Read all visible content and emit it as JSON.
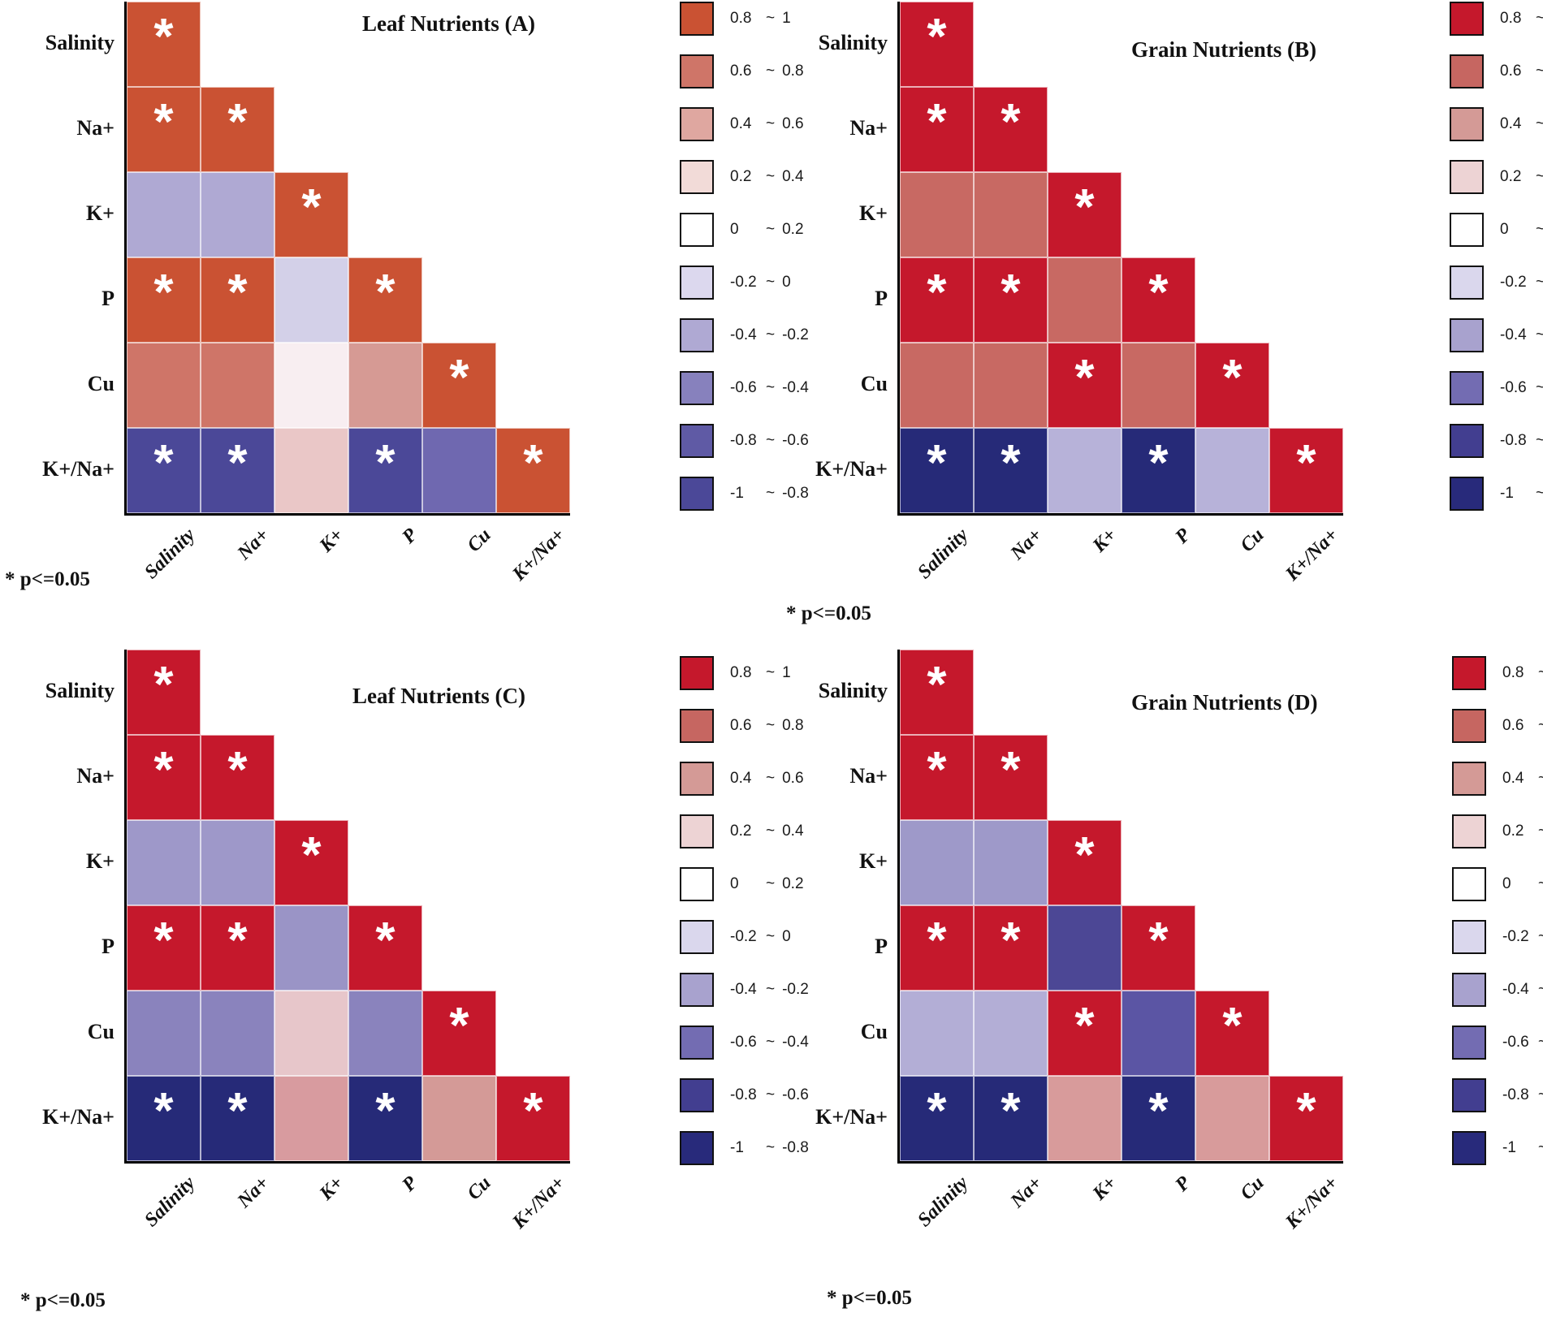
{
  "figure": {
    "significance_note": "* p<=0.05",
    "variables": [
      "Salinity",
      "Na+",
      "K+",
      "P",
      "Cu",
      "K+/Na+"
    ],
    "legend_bins": [
      {
        "from": "0.8",
        "to": "1"
      },
      {
        "from": "0.6",
        "to": "0.8"
      },
      {
        "from": "0.4",
        "to": "0.6"
      },
      {
        "from": "0.2",
        "to": "0.4"
      },
      {
        "from": "0",
        "to": "0.2"
      },
      {
        "from": "-0.2",
        "to": "0"
      },
      {
        "from": "-0.4",
        "to": "-0.2"
      },
      {
        "from": "-0.6",
        "to": "-0.4"
      },
      {
        "from": "-0.8",
        "to": "-0.6"
      },
      {
        "from": "-1",
        "to": "-0.8"
      }
    ],
    "schemes": {
      "orange": [
        "#CA5233",
        "#CF7568",
        "#DFA7A0",
        "#F2DBD8",
        "#FFFFFF",
        "#DCD8EE",
        "#AFA9D3",
        "#8781BD",
        "#5F5AA5",
        "#4B4898"
      ],
      "red": [
        "#C5182C",
        "#C66661",
        "#D49A96",
        "#EDD3D4",
        "#FFFFFF",
        "#DAD7ED",
        "#A8A2CE",
        "#736CB2",
        "#423E90",
        "#282A7B"
      ]
    }
  },
  "chart_data": [
    {
      "id": "A",
      "type": "heatmap",
      "title": "Leaf Nutrients (A)",
      "scheme": "orange",
      "legend_position": "right",
      "note": "* p<=0.05",
      "categories": [
        "Salinity",
        "Na+",
        "K+",
        "P",
        "Cu",
        "K+/Na+"
      ],
      "values": [
        [
          0.9
        ],
        [
          0.9,
          0.9
        ],
        [
          -0.3,
          -0.3,
          0.9
        ],
        [
          0.9,
          0.9,
          -0.1,
          0.9
        ],
        [
          0.7,
          0.7,
          0.1,
          0.5,
          0.9
        ],
        [
          -0.9,
          -0.9,
          0.3,
          -0.9,
          -0.5,
          0.9
        ]
      ],
      "significant": [
        [
          true
        ],
        [
          true,
          true
        ],
        [
          false,
          false,
          true
        ],
        [
          true,
          true,
          false,
          true
        ],
        [
          false,
          false,
          false,
          false,
          true
        ],
        [
          true,
          true,
          false,
          true,
          false,
          true
        ]
      ],
      "cell_colors": [
        [
          "#CA5233"
        ],
        [
          "#CA5233",
          "#CA5233"
        ],
        [
          "#AFA9D3",
          "#AFA9D3",
          "#CA5233"
        ],
        [
          "#CA5233",
          "#CA5233",
          "#D3D0E8",
          "#CA5233"
        ],
        [
          "#CF7568",
          "#CF7568",
          "#F8EEF1",
          "#D69A94",
          "#CA5233"
        ],
        [
          "#4B4898",
          "#4B4898",
          "#EAC7C7",
          "#4B4898",
          "#6F68B0",
          "#CA5233"
        ]
      ]
    },
    {
      "id": "B",
      "type": "heatmap",
      "title": "Grain Nutrients (B)",
      "scheme": "red",
      "legend_position": "right",
      "note": "* p<=0.05",
      "categories": [
        "Salinity",
        "Na+",
        "K+",
        "P",
        "Cu",
        "K+/Na+"
      ],
      "values": [
        [
          0.9
        ],
        [
          0.9,
          0.9
        ],
        [
          0.7,
          0.7,
          0.9
        ],
        [
          0.9,
          0.9,
          0.7,
          0.9
        ],
        [
          0.7,
          0.7,
          0.9,
          0.7,
          0.9
        ],
        [
          -0.9,
          -0.9,
          -0.3,
          -0.9,
          -0.3,
          0.9
        ]
      ],
      "significant": [
        [
          true
        ],
        [
          true,
          true
        ],
        [
          false,
          false,
          true
        ],
        [
          true,
          true,
          false,
          true
        ],
        [
          false,
          false,
          true,
          false,
          true
        ],
        [
          true,
          true,
          false,
          true,
          false,
          true
        ]
      ],
      "cell_colors": [
        [
          "#C5182C"
        ],
        [
          "#C5182C",
          "#C5182C"
        ],
        [
          "#C86963",
          "#C86963",
          "#C5182C"
        ],
        [
          "#C5182C",
          "#C5182C",
          "#C86963",
          "#C5182C"
        ],
        [
          "#C86963",
          "#C86963",
          "#C5182C",
          "#C86963",
          "#C5182C"
        ],
        [
          "#262A78",
          "#262A78",
          "#B7B2D9",
          "#262A78",
          "#B7B2D9",
          "#C5182C"
        ]
      ]
    },
    {
      "id": "C",
      "type": "heatmap",
      "title": "Leaf Nutrients (C)",
      "scheme": "red",
      "legend_position": "right",
      "note": "* p<=0.05",
      "categories": [
        "Salinity",
        "Na+",
        "K+",
        "P",
        "Cu",
        "K+/Na+"
      ],
      "values": [
        [
          0.9
        ],
        [
          0.9,
          0.9
        ],
        [
          -0.3,
          -0.3,
          0.9
        ],
        [
          0.9,
          0.9,
          -0.3,
          0.9
        ],
        [
          -0.5,
          -0.5,
          0.3,
          -0.5,
          0.9
        ],
        [
          -0.9,
          -0.9,
          0.5,
          -0.9,
          0.5,
          0.9
        ]
      ],
      "significant": [
        [
          true
        ],
        [
          true,
          true
        ],
        [
          false,
          false,
          true
        ],
        [
          true,
          true,
          false,
          true
        ],
        [
          false,
          false,
          false,
          false,
          true
        ],
        [
          true,
          true,
          false,
          true,
          false,
          true
        ]
      ],
      "cell_colors": [
        [
          "#C5182C"
        ],
        [
          "#C5182C",
          "#C5182C"
        ],
        [
          "#9E98C9",
          "#9E98C9",
          "#C5182C"
        ],
        [
          "#C5182C",
          "#C5182C",
          "#9A94C6",
          "#C5182C"
        ],
        [
          "#8A83BD",
          "#8A83BD",
          "#E7C6CA",
          "#8A83BD",
          "#C5182C"
        ],
        [
          "#262A78",
          "#262A78",
          "#D89B9F",
          "#262A78",
          "#D49A97",
          "#C5182C"
        ]
      ]
    },
    {
      "id": "D",
      "type": "heatmap",
      "title": "Grain Nutrients (D)",
      "scheme": "red",
      "legend_position": "right",
      "note": "* p<=0.05",
      "categories": [
        "Salinity",
        "Na+",
        "K+",
        "P",
        "Cu",
        "K+/Na+"
      ],
      "values": [
        [
          0.9
        ],
        [
          0.9,
          0.9
        ],
        [
          -0.3,
          -0.3,
          0.9
        ],
        [
          0.9,
          0.9,
          -0.7,
          0.9
        ],
        [
          -0.3,
          -0.3,
          0.9,
          -0.5,
          0.9
        ],
        [
          -0.9,
          -0.9,
          0.5,
          -0.9,
          0.5,
          0.9
        ]
      ],
      "significant": [
        [
          true
        ],
        [
          true,
          true
        ],
        [
          false,
          false,
          true
        ],
        [
          true,
          true,
          false,
          true
        ],
        [
          false,
          false,
          true,
          false,
          true
        ],
        [
          true,
          true,
          false,
          true,
          false,
          true
        ]
      ],
      "cell_colors": [
        [
          "#C5182C"
        ],
        [
          "#C5182C",
          "#C5182C"
        ],
        [
          "#9E99C9",
          "#9E99C9",
          "#C5182C"
        ],
        [
          "#C5182C",
          "#C5182C",
          "#4C4795",
          "#C5182C"
        ],
        [
          "#B3AED6",
          "#B3AED6",
          "#C5182C",
          "#5B55A4",
          "#C5182C"
        ],
        [
          "#262A78",
          "#262A78",
          "#D89B9B",
          "#262A78",
          "#D89B9B",
          "#C5182C"
        ]
      ]
    }
  ]
}
